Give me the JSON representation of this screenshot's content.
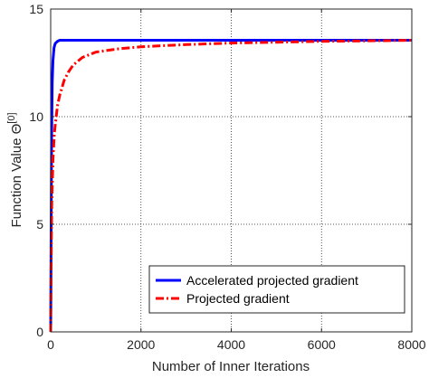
{
  "chart_data": {
    "type": "line",
    "title": "",
    "xlabel": "Number of Inner Iterations",
    "ylabel_main": "Function Value Θ",
    "ylabel_sup": "[0]",
    "xlim": [
      0,
      8000
    ],
    "ylim": [
      0,
      15
    ],
    "xticks": [
      "0",
      "2000",
      "4000",
      "6000",
      "8000"
    ],
    "yticks": [
      "0",
      "5",
      "10",
      "15"
    ],
    "xtick_values": [
      0,
      2000,
      4000,
      6000,
      8000
    ],
    "ytick_values": [
      0,
      5,
      10,
      15
    ],
    "grid": "dotted",
    "legend_position": "bottom-right",
    "series": [
      {
        "name": "Accelerated projected gradient",
        "color": "#0000ff",
        "style": "solid",
        "x": [
          0,
          10,
          20,
          35,
          50,
          75,
          100,
          150,
          200,
          300,
          400,
          600,
          1000,
          2000,
          4000,
          6000,
          8000
        ],
        "y": [
          0,
          5.0,
          9.0,
          11.6,
          12.6,
          13.2,
          13.4,
          13.5,
          13.55,
          13.55,
          13.55,
          13.55,
          13.55,
          13.55,
          13.55,
          13.55,
          13.55
        ]
      },
      {
        "name": "Projected gradient",
        "color": "#ff0000",
        "style": "dashdot",
        "x": [
          0,
          10,
          25,
          50,
          80,
          100,
          150,
          200,
          300,
          400,
          500,
          700,
          1000,
          1500,
          2000,
          3000,
          4000,
          5000,
          6000,
          7000,
          8000
        ],
        "y": [
          0,
          3.0,
          6.0,
          8.0,
          9.2,
          9.6,
          10.5,
          11.0,
          11.7,
          12.1,
          12.4,
          12.75,
          13.0,
          13.15,
          13.25,
          13.35,
          13.42,
          13.46,
          13.5,
          13.52,
          13.55
        ]
      }
    ]
  }
}
